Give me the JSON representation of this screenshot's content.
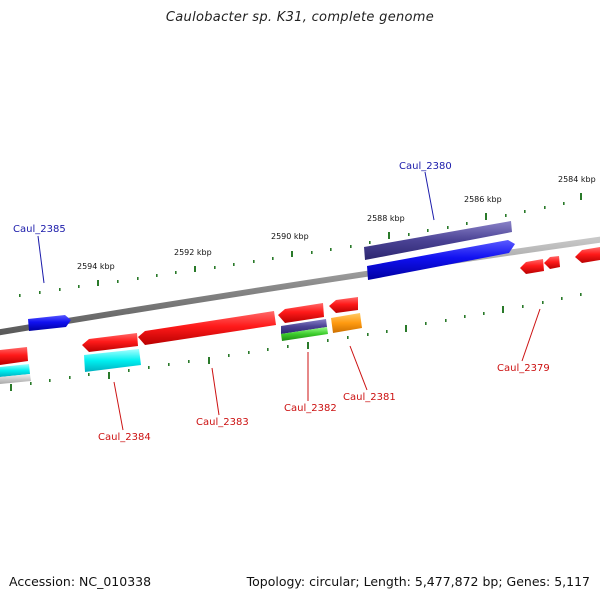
{
  "title": "Caulobacter sp. K31, complete genome",
  "footer": {
    "accession": "Accession: NC_010338",
    "summary": "Topology: circular; Length: 5,477,872 bp; Genes: 5,117"
  },
  "ticks": [
    "2594 kbp",
    "2592 kbp",
    "2590 kbp",
    "2588 kbp",
    "2586 kbp",
    "2584 kbp"
  ],
  "genes": {
    "caul_2385": "Caul_2385",
    "caul_2380": "Caul_2380",
    "caul_2384": "Caul_2384",
    "caul_2383": "Caul_2383",
    "caul_2382": "Caul_2382",
    "caul_2381": "Caul_2381",
    "caul_2379": "Caul_2379"
  },
  "colors": {
    "forward_gene": "#0a0aee",
    "reverse_gene": "#ee1111",
    "label_forward": "#1a1aaa",
    "label_reverse": "#cc1111",
    "tick": "#2a7a2a",
    "backbone": "#888888"
  }
}
